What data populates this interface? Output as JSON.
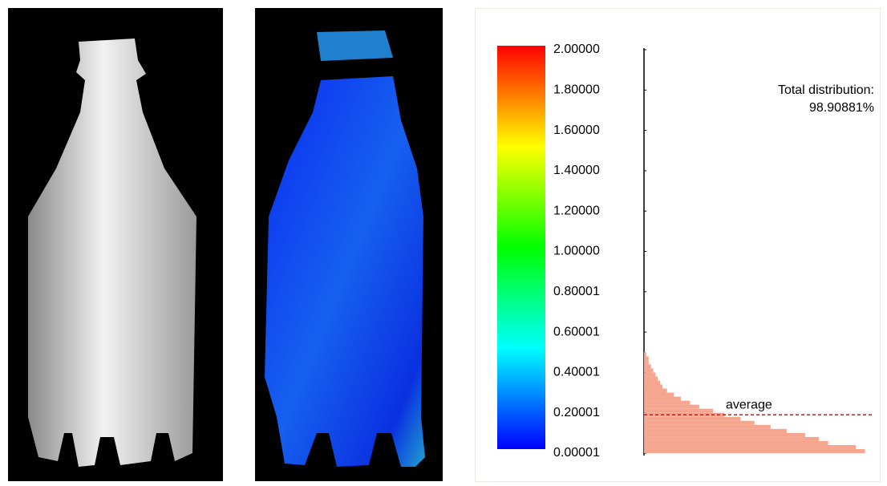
{
  "chart_data": {
    "type": "histogram",
    "orientation": "horizontal",
    "bins": [
      0,
      0.02,
      0.04,
      0.06,
      0.08,
      0.1,
      0.12,
      0.14,
      0.16,
      0.18,
      0.2,
      0.22,
      0.24,
      0.26,
      0.28,
      0.3,
      0.32,
      0.34,
      0.36,
      0.38,
      0.4,
      0.42,
      0.44,
      0.46,
      0.48,
      0.5
    ],
    "values": [
      96,
      92,
      80,
      76,
      70,
      62,
      55,
      48,
      42,
      35,
      30,
      24,
      20,
      16,
      13,
      10,
      8,
      7,
      6,
      5,
      4,
      3,
      2,
      2,
      1
    ],
    "color": "#f6a58f",
    "xlim": [
      0,
      100
    ],
    "ylim": [
      0,
      2
    ],
    "yticks": [
      {
        "value": 2,
        "label": "2.00000"
      },
      {
        "value": 1.8,
        "label": "1.80000"
      },
      {
        "value": 1.6,
        "label": "1.60000"
      },
      {
        "value": 1.4,
        "label": "1.40000"
      },
      {
        "value": 1.2,
        "label": "1.20000"
      },
      {
        "value": 1,
        "label": "1.00000"
      },
      0.80001,
      0.60001,
      0.40001,
      0.20001,
      1e-05
    ],
    "average": {
      "value": 0.19,
      "label": "average",
      "color": "#e01010"
    },
    "total_label": "Total distribution:",
    "total_value": "98.90881%"
  }
}
